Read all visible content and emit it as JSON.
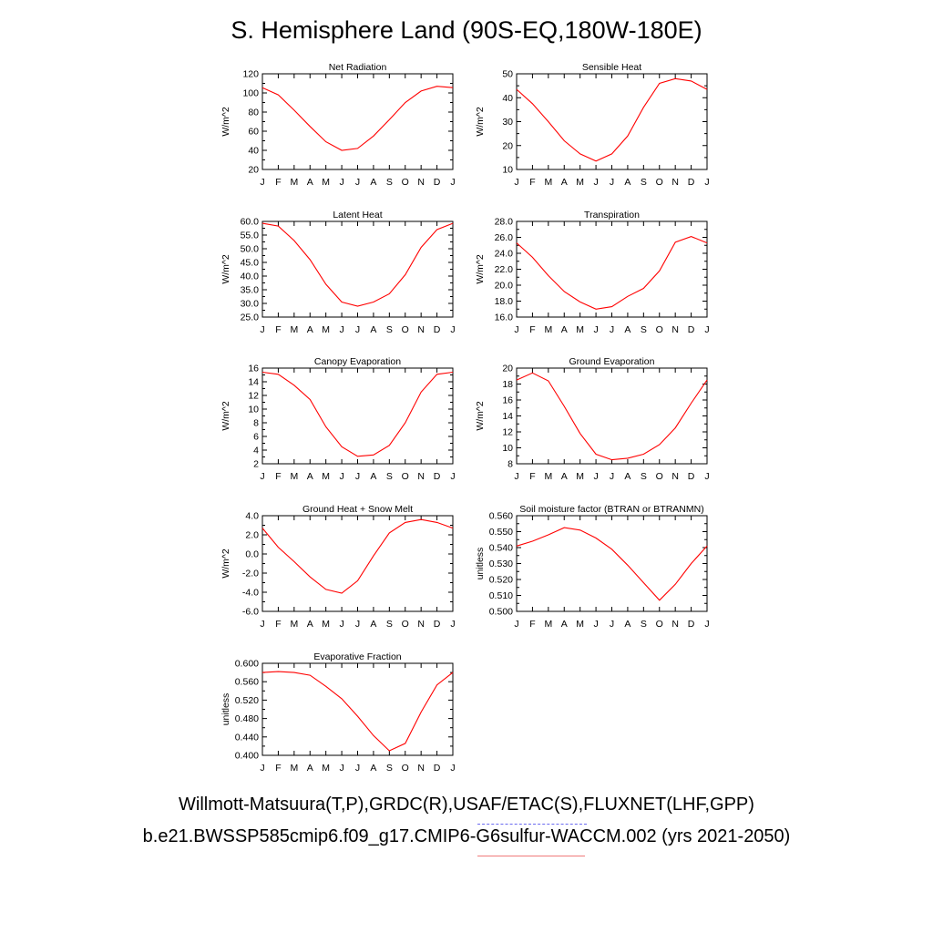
{
  "title": "S. Hemisphere Land (90S-EQ,180W-180E)",
  "footer": {
    "observations": "Willmott-Matsuura(T,P),GRDC(R),USAF/ETAC(S),FLUXNET(LHF,GPP)",
    "model_case": "b.e21.BWSSP585cmip6.f09_g17.CMIP6-G6sulfur-WACCM.002 (yrs 2021-2050)"
  },
  "colors": {
    "model_line": "#ff0000",
    "obs_legend": "#6a6af0",
    "model_legend": "#f07a7a",
    "axes": "#000000"
  },
  "chart_data": [
    {
      "type": "line",
      "title": "Net Radiation",
      "ylabel": "W/m^2",
      "x": [
        "J",
        "F",
        "M",
        "A",
        "M",
        "J",
        "J",
        "A",
        "S",
        "O",
        "N",
        "D",
        "J"
      ],
      "yticks": [
        "20",
        "40",
        "60",
        "80",
        "100",
        "120"
      ],
      "ylim": [
        20,
        120
      ],
      "values": [
        105.5,
        98,
        82,
        65,
        49,
        40,
        42,
        55,
        72,
        90,
        102,
        107,
        105.5
      ]
    },
    {
      "type": "line",
      "title": "Sensible Heat",
      "ylabel": "W/m^2",
      "x": [
        "J",
        "F",
        "M",
        "A",
        "M",
        "J",
        "J",
        "A",
        "S",
        "O",
        "N",
        "D",
        "J"
      ],
      "yticks": [
        "10",
        "20",
        "30",
        "40",
        "50"
      ],
      "ylim": [
        10,
        50
      ],
      "values": [
        43.5,
        37.5,
        30,
        22,
        16.5,
        13.5,
        16.5,
        24,
        36,
        46,
        48,
        47,
        43.5
      ]
    },
    {
      "type": "line",
      "title": "Latent Heat",
      "ylabel": "W/m^2",
      "x": [
        "J",
        "F",
        "M",
        "A",
        "M",
        "J",
        "J",
        "A",
        "S",
        "O",
        "N",
        "D",
        "J"
      ],
      "yticks": [
        "25.0",
        "30.0",
        "35.0",
        "40.0",
        "45.0",
        "50.0",
        "55.0",
        "60.0"
      ],
      "ylim": [
        25,
        60
      ],
      "values": [
        59.3,
        58.3,
        53,
        46,
        37,
        30.5,
        29,
        30.5,
        33.5,
        40.5,
        50.5,
        57,
        59.3
      ]
    },
    {
      "type": "line",
      "title": "Transpiration",
      "ylabel": "W/m^2",
      "x": [
        "J",
        "F",
        "M",
        "A",
        "M",
        "J",
        "J",
        "A",
        "S",
        "O",
        "N",
        "D",
        "J"
      ],
      "yticks": [
        "16.0",
        "18.0",
        "20.0",
        "22.0",
        "24.0",
        "26.0",
        "28.0"
      ],
      "ylim": [
        16,
        28
      ],
      "values": [
        25.3,
        23.5,
        21.2,
        19.2,
        17.9,
        17.0,
        17.3,
        18.6,
        19.6,
        21.8,
        25.4,
        26.1,
        25.3
      ]
    },
    {
      "type": "line",
      "title": "Canopy Evaporation",
      "ylabel": "W/m^2",
      "x": [
        "J",
        "F",
        "M",
        "A",
        "M",
        "J",
        "J",
        "A",
        "S",
        "O",
        "N",
        "D",
        "J"
      ],
      "yticks": [
        "2",
        "4",
        "6",
        "8",
        "10",
        "12",
        "14",
        "16"
      ],
      "ylim": [
        2,
        16
      ],
      "values": [
        15.4,
        15.1,
        13.5,
        11.4,
        7.4,
        4.5,
        3.1,
        3.3,
        4.7,
        8.0,
        12.5,
        15.1,
        15.4
      ]
    },
    {
      "type": "line",
      "title": "Ground Evaporation",
      "ylabel": "W/m^2",
      "x": [
        "J",
        "F",
        "M",
        "A",
        "M",
        "J",
        "J",
        "A",
        "S",
        "O",
        "N",
        "D",
        "J"
      ],
      "yticks": [
        "8",
        "10",
        "12",
        "14",
        "16",
        "18",
        "20"
      ],
      "ylim": [
        8,
        20
      ],
      "values": [
        18.5,
        19.4,
        18.4,
        15.2,
        11.8,
        9.2,
        8.5,
        8.7,
        9.2,
        10.4,
        12.5,
        15.6,
        18.5
      ]
    },
    {
      "type": "line",
      "title": "Ground Heat + Snow Melt",
      "ylabel": "W/m^2",
      "x": [
        "J",
        "F",
        "M",
        "A",
        "M",
        "J",
        "J",
        "A",
        "S",
        "O",
        "N",
        "D",
        "J"
      ],
      "yticks": [
        "-6.0",
        "-4.0",
        "-2.0",
        "0.0",
        "2.0",
        "4.0"
      ],
      "ylim": [
        -6,
        4
      ],
      "values": [
        2.7,
        0.7,
        -0.8,
        -2.4,
        -3.7,
        -4.1,
        -2.8,
        -0.2,
        2.2,
        3.3,
        3.6,
        3.3,
        2.7
      ]
    },
    {
      "type": "line",
      "title": "Soil moisture factor (BTRAN or BTRANMN)",
      "ylabel": "unitless",
      "x": [
        "J",
        "F",
        "M",
        "A",
        "M",
        "J",
        "J",
        "A",
        "S",
        "O",
        "N",
        "D",
        "J"
      ],
      "yticks": [
        "0.500",
        "0.510",
        "0.520",
        "0.530",
        "0.540",
        "0.550",
        "0.560"
      ],
      "ylim": [
        0.5,
        0.56
      ],
      "values": [
        0.541,
        0.544,
        0.548,
        0.5525,
        0.551,
        0.546,
        0.539,
        0.529,
        0.518,
        0.507,
        0.517,
        0.53,
        0.541
      ]
    },
    {
      "type": "line",
      "title": "Evaporative Fraction",
      "ylabel": "unitless",
      "x": [
        "J",
        "F",
        "M",
        "A",
        "M",
        "J",
        "J",
        "A",
        "S",
        "O",
        "N",
        "D",
        "J"
      ],
      "yticks": [
        "0.400",
        "0.440",
        "0.480",
        "0.520",
        "0.560",
        "0.600"
      ],
      "ylim": [
        0.4,
        0.6
      ],
      "values": [
        0.58,
        0.582,
        0.58,
        0.574,
        0.55,
        0.523,
        0.485,
        0.443,
        0.41,
        0.426,
        0.494,
        0.553,
        0.58
      ]
    }
  ]
}
